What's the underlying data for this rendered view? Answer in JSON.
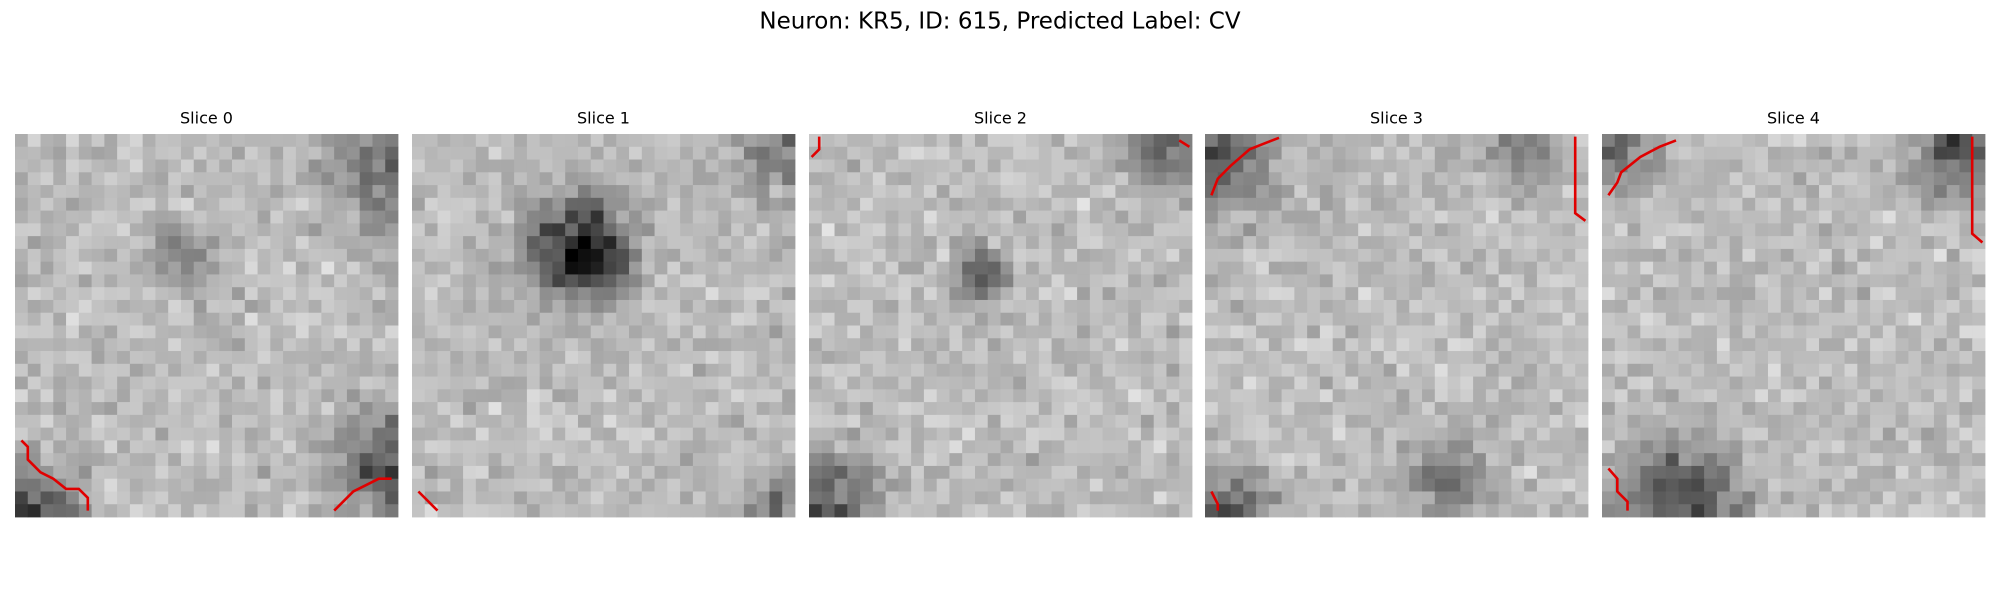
{
  "title": "Neuron: KR5, ID: 615, Predicted Label: CV",
  "panels": [
    {
      "title": "Slice 0"
    },
    {
      "title": "Slice 1"
    },
    {
      "title": "Slice 2"
    },
    {
      "title": "Slice 3"
    },
    {
      "title": "Slice 4"
    }
  ]
}
